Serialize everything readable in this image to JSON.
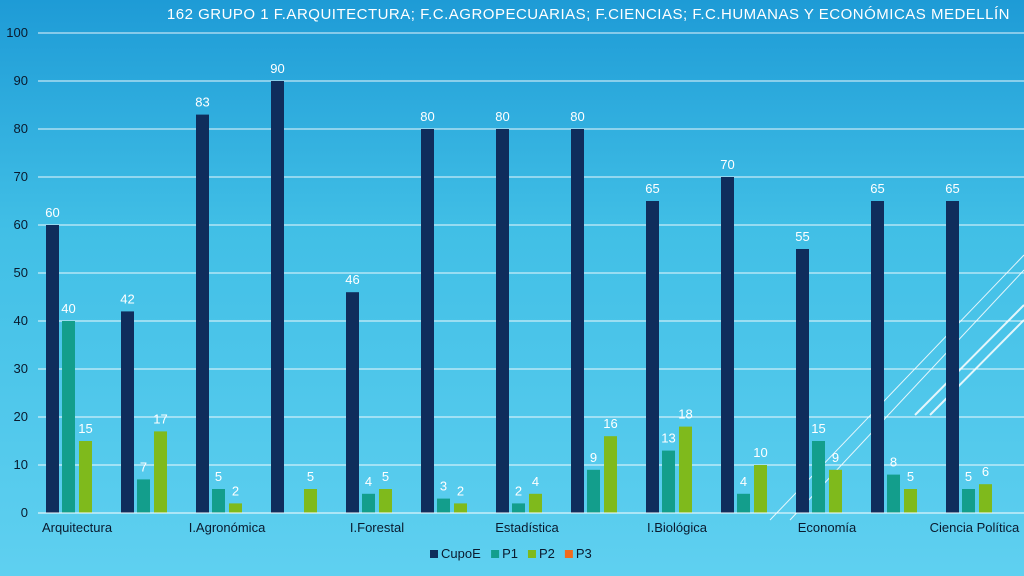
{
  "title": "162  GRUPO 1  F.ARQUITECTURA;  F.C.AGROPECUARIAS;  F.CIENCIAS;  F.C.HUMANAS Y ECONÓMICAS  MEDELLÍN",
  "chart_data": {
    "type": "bar",
    "title": "162  GRUPO 1  F.ARQUITECTURA;  F.C.AGROPECUARIAS;  F.CIENCIAS;  F.C.HUMANAS Y ECONÓMICAS  MEDELLÍN",
    "categories": [
      "Arquitectura",
      "",
      "I.Agronómica",
      "",
      "I.Forestal",
      "",
      "Estadística",
      "",
      "I.Biológica",
      "",
      "Economía",
      "",
      "Ciencia Política"
    ],
    "ylim": [
      0,
      100
    ],
    "yticks": [
      0,
      10,
      20,
      30,
      40,
      50,
      60,
      70,
      80,
      90,
      100
    ],
    "grid": true,
    "legend_position": "bottom",
    "series": [
      {
        "name": "CupoE",
        "color": "#0f2d5c",
        "values": [
          60,
          42,
          83,
          90,
          46,
          80,
          80,
          80,
          65,
          70,
          55,
          65,
          65
        ]
      },
      {
        "name": "P1",
        "color": "#139e8c",
        "values": [
          40,
          7,
          5,
          null,
          4,
          3,
          2,
          9,
          13,
          4,
          15,
          8,
          5
        ]
      },
      {
        "name": "P2",
        "color": "#7fba1c",
        "values": [
          15,
          17,
          2,
          5,
          5,
          2,
          4,
          16,
          18,
          10,
          9,
          5,
          6
        ]
      },
      {
        "name": "P3",
        "color": "#f26b1d",
        "values": [
          null,
          null,
          null,
          null,
          null,
          null,
          null,
          null,
          null,
          null,
          null,
          null,
          null
        ]
      }
    ]
  }
}
